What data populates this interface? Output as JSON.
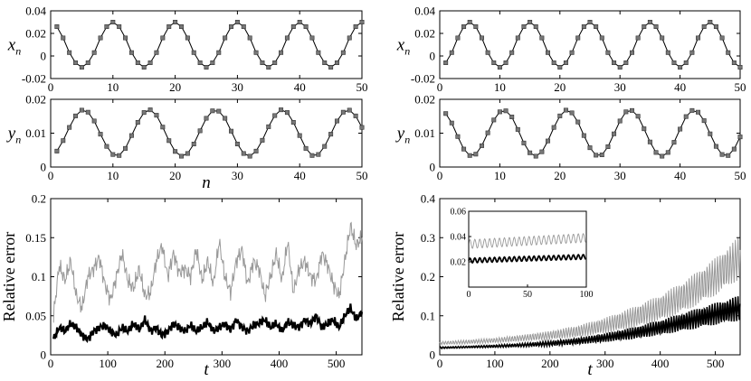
{
  "chart_data": [
    {
      "type": "line",
      "panel": "top-left-x",
      "ylabel": "x",
      "ylabel_sub": "n",
      "xlim": [
        0,
        50
      ],
      "ylim": [
        -0.02,
        0.04
      ],
      "xticks": [
        "0",
        "10",
        "20",
        "30",
        "40",
        "50"
      ],
      "yticks": [
        "-0.02",
        "0",
        "0.02",
        "0.04"
      ],
      "x": [
        1,
        2,
        3,
        4,
        5,
        6,
        7,
        8,
        9,
        10,
        11,
        12,
        13,
        14,
        15,
        16,
        17,
        18,
        19,
        20,
        21,
        22,
        23,
        24,
        25,
        26,
        27,
        28,
        29,
        30,
        31,
        32,
        33,
        34,
        35,
        36,
        37,
        38,
        39,
        40,
        41,
        42,
        43,
        44,
        45,
        46,
        47,
        48,
        49,
        50
      ],
      "series": [
        {
          "values": [
            0.026,
            0.016,
            0.003,
            -0.006,
            -0.01,
            -0.006,
            0.003,
            0.016,
            0.026,
            0.03,
            0.026,
            0.016,
            0.003,
            -0.006,
            -0.01,
            -0.006,
            0.003,
            0.016,
            0.026,
            0.03,
            0.026,
            0.016,
            0.003,
            -0.006,
            -0.01,
            -0.006,
            0.003,
            0.016,
            0.026,
            0.03,
            0.026,
            0.016,
            0.003,
            -0.006,
            -0.01,
            -0.006,
            0.003,
            0.016,
            0.026,
            0.03,
            0.026,
            0.016,
            0.003,
            -0.006,
            -0.01,
            -0.006,
            0.003,
            0.016,
            0.026,
            0.03
          ]
        }
      ]
    },
    {
      "type": "line",
      "panel": "top-left-y",
      "ylabel": "y",
      "ylabel_sub": "n",
      "xlabel": "n",
      "xlim": [
        0,
        50
      ],
      "ylim": [
        0,
        0.02
      ],
      "xticks": [
        "0",
        "10",
        "20",
        "30",
        "40",
        "50"
      ],
      "yticks": [
        "0",
        "0.01",
        "0.02"
      ],
      "x": [
        1,
        2,
        3,
        4,
        5,
        6,
        7,
        8,
        9,
        10,
        11,
        12,
        13,
        14,
        15,
        16,
        17,
        18,
        19,
        20,
        21,
        22,
        23,
        24,
        25,
        26,
        27,
        28,
        29,
        30,
        31,
        32,
        33,
        34,
        35,
        36,
        37,
        38,
        39,
        40,
        41,
        42,
        43,
        44,
        45,
        46,
        47,
        48,
        49,
        50
      ],
      "series": [
        {
          "values": [
            0.0047,
            0.0078,
            0.0117,
            0.0151,
            0.0168,
            0.0162,
            0.0136,
            0.0097,
            0.0061,
            0.0037,
            0.0034,
            0.0055,
            0.0093,
            0.0132,
            0.0161,
            0.0169,
            0.0153,
            0.0118,
            0.0078,
            0.0046,
            0.0032,
            0.004,
            0.0068,
            0.0107,
            0.0144,
            0.0166,
            0.0165,
            0.0144,
            0.0106,
            0.0068,
            0.004,
            0.0032,
            0.0047,
            0.0079,
            0.0119,
            0.0152,
            0.0169,
            0.0161,
            0.0132,
            0.0093,
            0.0055,
            0.0034,
            0.0037,
            0.0061,
            0.0097,
            0.0136,
            0.0162,
            0.0168,
            0.0151,
            0.0117
          ]
        }
      ]
    },
    {
      "type": "line",
      "panel": "top-right-x",
      "ylabel": "x",
      "ylabel_sub": "n",
      "xlim": [
        0,
        50
      ],
      "ylim": [
        -0.02,
        0.04
      ],
      "xticks": [
        "0",
        "10",
        "20",
        "30",
        "40",
        "50"
      ],
      "yticks": [
        "-0.02",
        "0",
        "0.02",
        "0.04"
      ],
      "x": [
        1,
        2,
        3,
        4,
        5,
        6,
        7,
        8,
        9,
        10,
        11,
        12,
        13,
        14,
        15,
        16,
        17,
        18,
        19,
        20,
        21,
        22,
        23,
        24,
        25,
        26,
        27,
        28,
        29,
        30,
        31,
        32,
        33,
        34,
        35,
        36,
        37,
        38,
        39,
        40,
        41,
        42,
        43,
        44,
        45,
        46,
        47,
        48,
        49,
        50
      ],
      "series": [
        {
          "values": [
            -0.006,
            0.003,
            0.016,
            0.026,
            0.03,
            0.026,
            0.016,
            0.003,
            -0.006,
            -0.01,
            -0.006,
            0.003,
            0.016,
            0.026,
            0.03,
            0.026,
            0.016,
            0.003,
            -0.006,
            -0.01,
            -0.006,
            0.003,
            0.016,
            0.026,
            0.03,
            0.026,
            0.016,
            0.003,
            -0.006,
            -0.01,
            -0.006,
            0.003,
            0.016,
            0.026,
            0.03,
            0.026,
            0.016,
            0.003,
            -0.006,
            -0.01,
            -0.006,
            0.003,
            0.016,
            0.026,
            0.03,
            0.026,
            0.016,
            0.003,
            -0.006,
            -0.01
          ]
        }
      ]
    },
    {
      "type": "line",
      "panel": "top-right-y",
      "ylabel": "y",
      "ylabel_sub": "n",
      "xlim": [
        0,
        50
      ],
      "ylim": [
        0,
        0.02
      ],
      "xticks": [
        "0",
        "10",
        "20",
        "30",
        "40",
        "50"
      ],
      "yticks": [
        "0",
        "0.01",
        "0.02"
      ],
      "x": [
        1,
        2,
        3,
        4,
        5,
        6,
        7,
        8,
        9,
        10,
        11,
        12,
        13,
        14,
        15,
        16,
        17,
        18,
        19,
        20,
        21,
        22,
        23,
        24,
        25,
        26,
        27,
        28,
        29,
        30,
        31,
        32,
        33,
        34,
        35,
        36,
        37,
        38,
        39,
        40,
        41,
        42,
        43,
        44,
        45,
        46,
        47,
        48,
        49,
        50
      ],
      "series": [
        {
          "values": [
            0.0158,
            0.013,
            0.009,
            0.0053,
            0.0034,
            0.0038,
            0.0063,
            0.0101,
            0.0139,
            0.0163,
            0.0166,
            0.0148,
            0.0111,
            0.0071,
            0.0042,
            0.0032,
            0.0045,
            0.0077,
            0.0117,
            0.0151,
            0.0168,
            0.016,
            0.0133,
            0.0093,
            0.0057,
            0.0035,
            0.0036,
            0.006,
            0.0098,
            0.0136,
            0.0163,
            0.0167,
            0.015,
            0.0113,
            0.0074,
            0.0043,
            0.0032,
            0.0043,
            0.0073,
            0.0112,
            0.0149,
            0.0167,
            0.0162,
            0.0137,
            0.0098,
            0.0061,
            0.0037,
            0.0034,
            0.0053,
            0.0089
          ]
        }
      ]
    },
    {
      "type": "line",
      "panel": "bottom-left",
      "xlabel": "t",
      "ylabel": "Relative error",
      "xlim": [
        0,
        545
      ],
      "ylim": [
        0,
        0.2
      ],
      "xticks": [
        "0",
        "100",
        "200",
        "300",
        "400",
        "500"
      ],
      "yticks": [
        "0",
        "0.05",
        "0.1",
        "0.15",
        "0.2"
      ],
      "series": [
        {
          "color": "#999999",
          "x": [
            5,
            15,
            25,
            35,
            45,
            55,
            65,
            75,
            85,
            95,
            105,
            115,
            125,
            135,
            145,
            155,
            165,
            175,
            185,
            195,
            205,
            215,
            225,
            235,
            245,
            255,
            265,
            275,
            285,
            295,
            305,
            315,
            325,
            335,
            345,
            355,
            365,
            375,
            385,
            395,
            405,
            415,
            425,
            435,
            445,
            455,
            465,
            475,
            485,
            495,
            505,
            515,
            525,
            535,
            545
          ],
          "values": [
            0.05,
            0.115,
            0.095,
            0.12,
            0.075,
            0.06,
            0.1,
            0.11,
            0.125,
            0.09,
            0.07,
            0.1,
            0.13,
            0.095,
            0.085,
            0.11,
            0.075,
            0.08,
            0.12,
            0.14,
            0.1,
            0.13,
            0.105,
            0.11,
            0.1,
            0.135,
            0.095,
            0.12,
            0.09,
            0.145,
            0.1,
            0.08,
            0.12,
            0.135,
            0.09,
            0.12,
            0.11,
            0.075,
            0.1,
            0.13,
            0.095,
            0.145,
            0.08,
            0.11,
            0.12,
            0.1,
            0.095,
            0.13,
            0.115,
            0.09,
            0.075,
            0.12,
            0.165,
            0.14,
            0.15
          ]
        },
        {
          "color": "#000000",
          "x": [
            5,
            15,
            25,
            35,
            45,
            55,
            65,
            75,
            85,
            95,
            105,
            115,
            125,
            135,
            145,
            155,
            165,
            175,
            185,
            195,
            205,
            215,
            225,
            235,
            245,
            255,
            265,
            275,
            285,
            295,
            305,
            315,
            325,
            335,
            345,
            355,
            365,
            375,
            385,
            395,
            405,
            415,
            425,
            435,
            445,
            455,
            465,
            475,
            485,
            495,
            505,
            515,
            525,
            535,
            545
          ],
          "values": [
            0.02,
            0.035,
            0.03,
            0.04,
            0.035,
            0.025,
            0.02,
            0.03,
            0.035,
            0.038,
            0.03,
            0.025,
            0.035,
            0.03,
            0.04,
            0.032,
            0.045,
            0.03,
            0.035,
            0.025,
            0.03,
            0.04,
            0.035,
            0.03,
            0.038,
            0.03,
            0.035,
            0.042,
            0.03,
            0.035,
            0.04,
            0.032,
            0.045,
            0.035,
            0.03,
            0.038,
            0.04,
            0.045,
            0.035,
            0.04,
            0.03,
            0.042,
            0.038,
            0.035,
            0.045,
            0.04,
            0.05,
            0.035,
            0.04,
            0.045,
            0.035,
            0.05,
            0.06,
            0.045,
            0.055
          ]
        }
      ]
    },
    {
      "type": "line",
      "panel": "bottom-right",
      "xlabel": "t",
      "ylabel": "Relative error",
      "xlim": [
        0,
        545
      ],
      "ylim": [
        0,
        0.4
      ],
      "xticks": [
        "0",
        "100",
        "200",
        "300",
        "400",
        "500"
      ],
      "yticks": [
        "0",
        "0.1",
        "0.2",
        "0.3",
        "0.4"
      ],
      "series": [
        {
          "color": "#999999",
          "x": [
            0,
            50,
            100,
            150,
            200,
            250,
            300,
            350,
            400,
            450,
            500,
            545
          ],
          "values": [
            0.03,
            0.033,
            0.037,
            0.043,
            0.05,
            0.06,
            0.075,
            0.095,
            0.12,
            0.155,
            0.2,
            0.25
          ],
          "amplitude": [
            0.004,
            0.005,
            0.006,
            0.008,
            0.011,
            0.015,
            0.02,
            0.027,
            0.033,
            0.04,
            0.048,
            0.055
          ]
        },
        {
          "color": "#000000",
          "x": [
            0,
            50,
            100,
            150,
            200,
            250,
            300,
            350,
            400,
            450,
            500,
            545
          ],
          "values": [
            0.018,
            0.02,
            0.022,
            0.025,
            0.029,
            0.035,
            0.044,
            0.055,
            0.07,
            0.087,
            0.105,
            0.12
          ],
          "amplitude": [
            0.002,
            0.002,
            0.003,
            0.004,
            0.006,
            0.008,
            0.011,
            0.015,
            0.019,
            0.024,
            0.028,
            0.032
          ]
        }
      ],
      "inset": {
        "xlim": [
          0,
          100
        ],
        "ylim": [
          0,
          0.06
        ],
        "xticks": [
          "0",
          "50",
          "100"
        ],
        "yticks": [
          "0.02",
          "0.04",
          "0.06"
        ],
        "series": [
          {
            "color": "#999999",
            "base": [
              0.034,
              0.039
            ],
            "amplitude": 0.0035
          },
          {
            "color": "#000000",
            "base": [
              0.021,
              0.024
            ],
            "amplitude": 0.0018
          }
        ]
      }
    }
  ]
}
